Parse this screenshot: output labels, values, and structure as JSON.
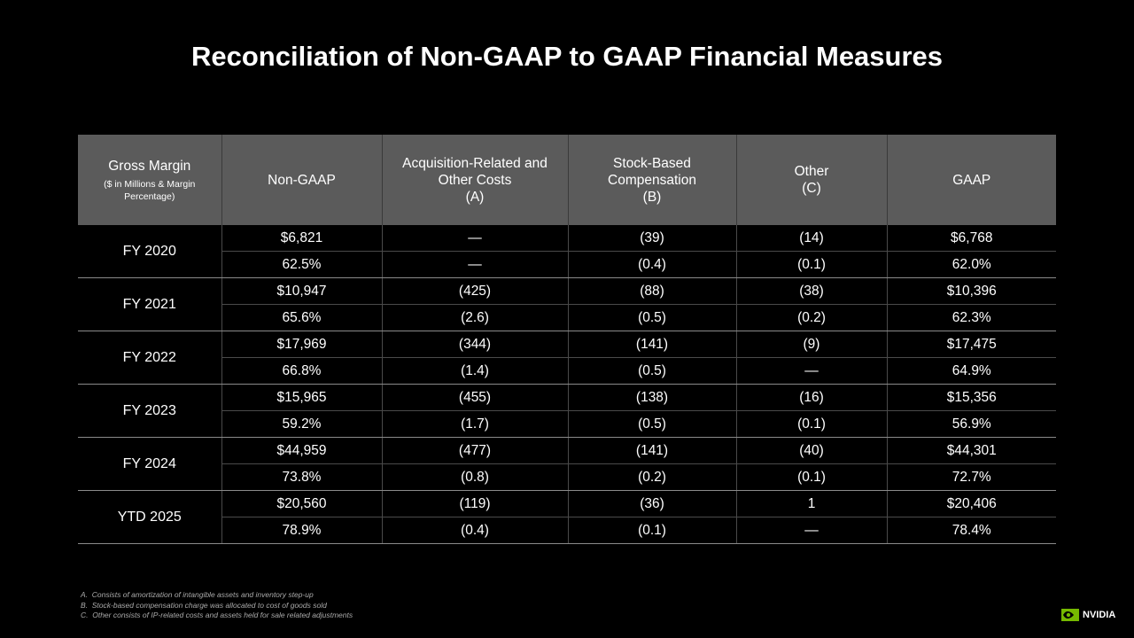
{
  "title": "Reconciliation of Non-GAAP to GAAP Financial Measures",
  "table": {
    "header": [
      {
        "label": "Gross Margin",
        "note": "($ in Millions & Margin Percentage)"
      },
      {
        "label": "Non-GAAP"
      },
      {
        "label": "Acquisition-Related and Other Costs",
        "note": "(A)"
      },
      {
        "label": "Stock-Based Compensation",
        "note": "(B)"
      },
      {
        "label": "Other",
        "note": "(C)"
      },
      {
        "label": "GAAP"
      }
    ],
    "groups": [
      {
        "label": "FY 2020",
        "rows": [
          [
            "$6,821",
            "—",
            "(39)",
            "(14)",
            "$6,768"
          ],
          [
            "62.5%",
            "—",
            "(0.4)",
            "(0.1)",
            "62.0%"
          ]
        ]
      },
      {
        "label": "FY 2021",
        "rows": [
          [
            "$10,947",
            "(425)",
            "(88)",
            "(38)",
            "$10,396"
          ],
          [
            "65.6%",
            "(2.6)",
            "(0.5)",
            "(0.2)",
            "62.3%"
          ]
        ]
      },
      {
        "label": "FY 2022",
        "rows": [
          [
            "$17,969",
            "(344)",
            "(141)",
            "(9)",
            "$17,475"
          ],
          [
            "66.8%",
            "(1.4)",
            "(0.5)",
            "—",
            "64.9%"
          ]
        ]
      },
      {
        "label": "FY 2023",
        "rows": [
          [
            "$15,965",
            "(455)",
            "(138)",
            "(16)",
            "$15,356"
          ],
          [
            "59.2%",
            "(1.7)",
            "(0.5)",
            "(0.1)",
            "56.9%"
          ]
        ]
      },
      {
        "label": "FY 2024",
        "rows": [
          [
            "$44,959",
            "(477)",
            "(141)",
            "(40)",
            "$44,301"
          ],
          [
            "73.8%",
            "(0.8)",
            "(0.2)",
            "(0.1)",
            "72.7%"
          ]
        ]
      },
      {
        "label": "YTD 2025",
        "rows": [
          [
            "$20,560",
            "(119)",
            "(36)",
            "1",
            "$20,406"
          ],
          [
            "78.9%",
            "(0.4)",
            "(0.1)",
            "—",
            "78.4%"
          ]
        ]
      }
    ]
  },
  "footnotes": [
    {
      "letter": "A.",
      "text": "Consists of amortization of intangible assets and inventory step-up"
    },
    {
      "letter": "B.",
      "text": "Stock-based compensation charge was allocated to cost of goods sold"
    },
    {
      "letter": "C.",
      "text": "Other consists of IP-related costs and assets held for sale related adjustments"
    }
  ],
  "logo": "NVIDIA"
}
